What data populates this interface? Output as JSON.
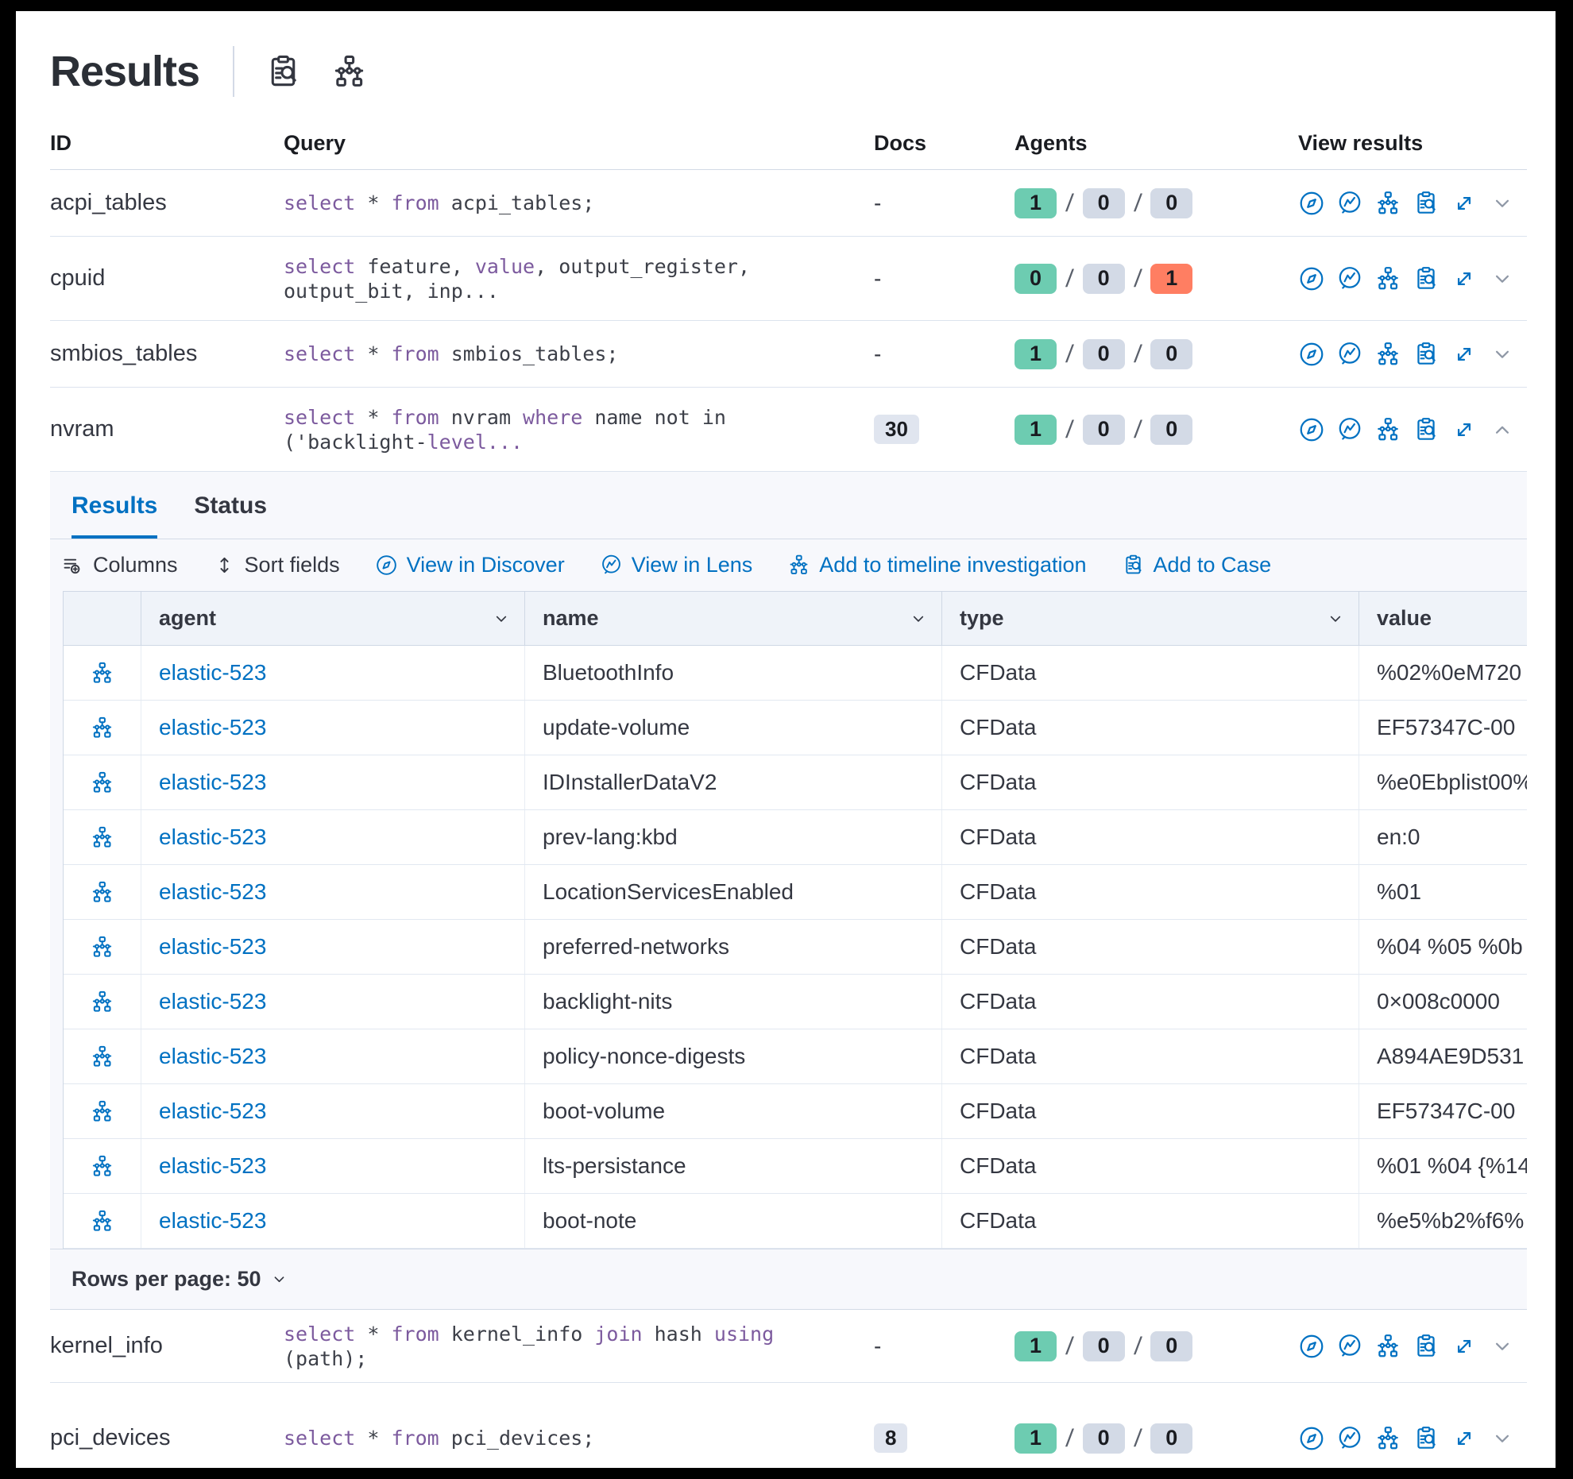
{
  "colors": {
    "primary_blue": "#0071c2",
    "text": "#343741",
    "keyword_purple": "#7c5a9e",
    "badge_green": "#6dccb1",
    "badge_gray": "#d3dae6",
    "badge_coral": "#ff7e62",
    "panel_bg": "#f7f8fc",
    "grid_header_bg": "#eff3f9"
  },
  "header": {
    "title": "Results",
    "icons": [
      "clipboard-search",
      "network-graph"
    ]
  },
  "main_table": {
    "columns": [
      "ID",
      "Query",
      "Docs",
      "Agents",
      "View results"
    ],
    "view_icons": [
      "discover",
      "lens",
      "network",
      "case",
      "expand"
    ],
    "rows_top": [
      {
        "id": "acpi_tables",
        "query": [
          [
            "select",
            1
          ],
          [
            " * ",
            0
          ],
          [
            "from",
            1
          ],
          [
            " acpi_tables;",
            0
          ]
        ],
        "docs": {
          "text": "-",
          "badge": false
        },
        "agents": [
          [
            "1",
            "green"
          ],
          [
            "0",
            "gray"
          ],
          [
            "0",
            "gray"
          ]
        ],
        "chevron": "down",
        "lines": 1
      },
      {
        "id": "cpuid",
        "query": [
          [
            "select",
            1
          ],
          [
            " feature, ",
            0
          ],
          [
            "value",
            1
          ],
          [
            ", output_register,\noutput_bit, inp...",
            0
          ]
        ],
        "docs": {
          "text": "-",
          "badge": false
        },
        "agents": [
          [
            "0",
            "green"
          ],
          [
            "0",
            "gray"
          ],
          [
            "1",
            "red"
          ]
        ],
        "chevron": "down",
        "lines": 2
      },
      {
        "id": "smbios_tables",
        "query": [
          [
            "select",
            1
          ],
          [
            " * ",
            0
          ],
          [
            "from",
            1
          ],
          [
            " smbios_tables;",
            0
          ]
        ],
        "docs": {
          "text": "-",
          "badge": false
        },
        "agents": [
          [
            "1",
            "green"
          ],
          [
            "0",
            "gray"
          ],
          [
            "0",
            "gray"
          ]
        ],
        "chevron": "down",
        "lines": 1
      },
      {
        "id": "nvram",
        "query": [
          [
            "select",
            1
          ],
          [
            " * ",
            0
          ],
          [
            "from",
            1
          ],
          [
            " nvram ",
            0
          ],
          [
            "where",
            1
          ],
          [
            " name not in\n('backlight-",
            0
          ],
          [
            "level...",
            1
          ]
        ],
        "docs": {
          "text": "30",
          "badge": true
        },
        "agents": [
          [
            "1",
            "green"
          ],
          [
            "0",
            "gray"
          ],
          [
            "0",
            "gray"
          ]
        ],
        "chevron": "up",
        "lines": 2
      }
    ],
    "rows_bottom": [
      {
        "id": "kernel_info",
        "query": [
          [
            "select",
            1
          ],
          [
            " * ",
            0
          ],
          [
            "from",
            1
          ],
          [
            " kernel_info ",
            0
          ],
          [
            "join",
            1
          ],
          [
            " hash ",
            0
          ],
          [
            "using",
            1
          ],
          [
            " (path);",
            0
          ]
        ],
        "docs": {
          "text": "-",
          "badge": false
        },
        "agents": [
          [
            "1",
            "green"
          ],
          [
            "0",
            "gray"
          ],
          [
            "0",
            "gray"
          ]
        ],
        "chevron": "down",
        "lines": 1,
        "h": "hk"
      },
      {
        "id": "pci_devices",
        "query": [
          [
            "select",
            1
          ],
          [
            " * ",
            0
          ],
          [
            "from",
            1
          ],
          [
            " pci_devices;",
            0
          ]
        ],
        "docs": {
          "text": "8",
          "badge": true
        },
        "agents": [
          [
            "1",
            "green"
          ],
          [
            "0",
            "gray"
          ],
          [
            "0",
            "gray"
          ]
        ],
        "chevron": "down",
        "lines": 1,
        "h": "hp"
      }
    ]
  },
  "expanded_panel": {
    "query_id": "nvram",
    "tabs": [
      {
        "label": "Results",
        "active": true
      },
      {
        "label": "Status",
        "active": false
      }
    ],
    "toolbar": [
      {
        "label": "Columns",
        "icon": "columns",
        "tone": "dark"
      },
      {
        "label": "Sort fields",
        "icon": "sort",
        "tone": "dark"
      },
      {
        "label": "View in Discover",
        "icon": "discover",
        "tone": "blue"
      },
      {
        "label": "View in Lens",
        "icon": "lens",
        "tone": "blue"
      },
      {
        "label": "Add to timeline investigation",
        "icon": "network",
        "tone": "blue"
      },
      {
        "label": "Add to Case",
        "icon": "case",
        "tone": "blue"
      }
    ],
    "grid": {
      "columns": [
        "agent",
        "name",
        "type",
        "value"
      ],
      "rows": [
        {
          "agent": "elastic-523",
          "name": "BluetoothInfo",
          "type": "CFData",
          "value": "%02%0eM720"
        },
        {
          "agent": "elastic-523",
          "name": "update-volume",
          "type": "CFData",
          "value": "EF57347C-00"
        },
        {
          "agent": "elastic-523",
          "name": "IDInstallerDataV2",
          "type": "CFData",
          "value": "%e0Ebplist00%"
        },
        {
          "agent": "elastic-523",
          "name": "prev-lang:kbd",
          "type": "CFData",
          "value": "en:0"
        },
        {
          "agent": "elastic-523",
          "name": "LocationServicesEnabled",
          "type": "CFData",
          "value": "%01"
        },
        {
          "agent": "elastic-523",
          "name": "preferred-networks",
          "type": "CFData",
          "value": "%04 %05 %0b"
        },
        {
          "agent": "elastic-523",
          "name": "backlight-nits",
          "type": "CFData",
          "value": "0×008c0000"
        },
        {
          "agent": "elastic-523",
          "name": "policy-nonce-digests",
          "type": "CFData",
          "value": "A894AE9D531"
        },
        {
          "agent": "elastic-523",
          "name": "boot-volume",
          "type": "CFData",
          "value": "EF57347C-00"
        },
        {
          "agent": "elastic-523",
          "name": "lts-persistance",
          "type": "CFData",
          "value": "%01 %04 {%14"
        },
        {
          "agent": "elastic-523",
          "name": "boot-note",
          "type": "CFData",
          "value": "%e5%b2%f6%"
        }
      ]
    },
    "footer": {
      "rows_per_page_label": "Rows per page: 50"
    }
  }
}
